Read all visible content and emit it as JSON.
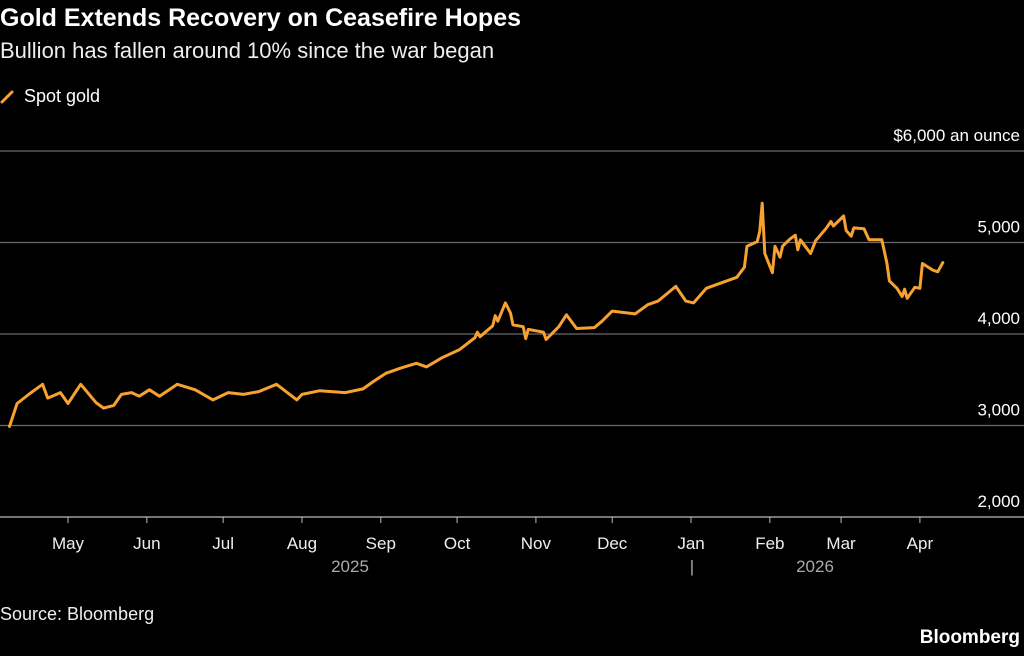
{
  "title": "Gold Extends Recovery on Ceasefire Hopes",
  "subtitle": "Bullion has fallen around 10% since the war began",
  "source": "Source: Bloomberg",
  "logo": "Bloomberg",
  "chart_data": {
    "type": "line",
    "title": "Gold Extends Recovery on Ceasefire Hopes",
    "subtitle": "Bullion has fallen around 10% since the war began",
    "ylabel": "$6,000 an ounce",
    "ylim": [
      2000,
      6000
    ],
    "y_ticks": [
      2000,
      3000,
      4000,
      5000,
      6000
    ],
    "y_tick_labels": [
      "2,000",
      "3,000",
      "4,000",
      "5,000",
      "$6,000 an ounce"
    ],
    "x_tick_labels": [
      "May",
      "Jun",
      "Jul",
      "Aug",
      "Sep",
      "Oct",
      "Nov",
      "Dec",
      "Jan",
      "Feb",
      "Mar",
      "Apr"
    ],
    "x_ticks": [
      "2025-05-01",
      "2025-06-01",
      "2025-07-01",
      "2025-08-01",
      "2025-09-01",
      "2025-10-01",
      "2025-11-01",
      "2025-12-01",
      "2026-01-01",
      "2026-02-01",
      "2026-03-01",
      "2026-04-01"
    ],
    "year_labels": [
      "2025",
      "2026"
    ],
    "year_separator": "|",
    "grid": true,
    "legend_position": "top-left",
    "color": "#f7a131",
    "series": [
      {
        "name": "Spot gold",
        "x": [
          "2025-04-08",
          "2025-04-11",
          "2025-04-16",
          "2025-04-21",
          "2025-04-23",
          "2025-04-28",
          "2025-05-01",
          "2025-05-06",
          "2025-05-12",
          "2025-05-15",
          "2025-05-19",
          "2025-05-22",
          "2025-05-26",
          "2025-05-29",
          "2025-06-02",
          "2025-06-06",
          "2025-06-13",
          "2025-06-20",
          "2025-06-27",
          "2025-07-03",
          "2025-07-09",
          "2025-07-15",
          "2025-07-22",
          "2025-07-30",
          "2025-08-01",
          "2025-08-08",
          "2025-08-18",
          "2025-08-25",
          "2025-08-29",
          "2025-09-03",
          "2025-09-09",
          "2025-09-15",
          "2025-09-19",
          "2025-09-25",
          "2025-10-02",
          "2025-10-08",
          "2025-10-09",
          "2025-10-10",
          "2025-10-15",
          "2025-10-16",
          "2025-10-17",
          "2025-10-20",
          "2025-10-22",
          "2025-10-23",
          "2025-10-27",
          "2025-10-28",
          "2025-10-29",
          "2025-11-04",
          "2025-11-05",
          "2025-11-10",
          "2025-11-13",
          "2025-11-17",
          "2025-11-24",
          "2025-11-27",
          "2025-12-01",
          "2025-12-10",
          "2025-12-15",
          "2025-12-19",
          "2025-12-26",
          "2025-12-30",
          "2026-01-02",
          "2026-01-07",
          "2026-01-12",
          "2026-01-19",
          "2026-01-22",
          "2026-01-23",
          "2026-01-27",
          "2026-01-28",
          "2026-01-29",
          "2026-01-30",
          "2026-02-02",
          "2026-02-03",
          "2026-02-05",
          "2026-02-06",
          "2026-02-09",
          "2026-02-11",
          "2026-02-12",
          "2026-02-13",
          "2026-02-17",
          "2026-02-19",
          "2026-02-23",
          "2026-02-25",
          "2026-02-26",
          "2026-03-02",
          "2026-03-03",
          "2026-03-05",
          "2026-03-06",
          "2026-03-10",
          "2026-03-12",
          "2026-03-17",
          "2026-03-19",
          "2026-03-20",
          "2026-03-23",
          "2026-03-25",
          "2026-03-26",
          "2026-03-27",
          "2026-03-30",
          "2026-04-01",
          "2026-04-02",
          "2026-04-06",
          "2026-04-08",
          "2026-04-10"
        ],
        "values": [
          2990,
          3240,
          3350,
          3450,
          3300,
          3360,
          3240,
          3450,
          3250,
          3190,
          3220,
          3340,
          3360,
          3320,
          3390,
          3320,
          3450,
          3390,
          3280,
          3360,
          3340,
          3370,
          3450,
          3280,
          3340,
          3380,
          3360,
          3400,
          3480,
          3570,
          3630,
          3680,
          3640,
          3740,
          3830,
          3960,
          4020,
          3970,
          4090,
          4200,
          4140,
          4340,
          4230,
          4100,
          4080,
          3950,
          4050,
          4020,
          3940,
          4080,
          4210,
          4060,
          4070,
          4140,
          4250,
          4220,
          4320,
          4360,
          4520,
          4360,
          4340,
          4500,
          4550,
          4620,
          4730,
          4960,
          5010,
          5120,
          5430,
          4880,
          4670,
          4960,
          4840,
          4960,
          5040,
          5080,
          4920,
          5030,
          4880,
          5020,
          5150,
          5230,
          5180,
          5290,
          5130,
          5070,
          5160,
          5150,
          5030,
          5030,
          4780,
          4580,
          4500,
          4410,
          4490,
          4390,
          4510,
          4500,
          4770,
          4700,
          4680,
          4780
        ]
      }
    ]
  }
}
